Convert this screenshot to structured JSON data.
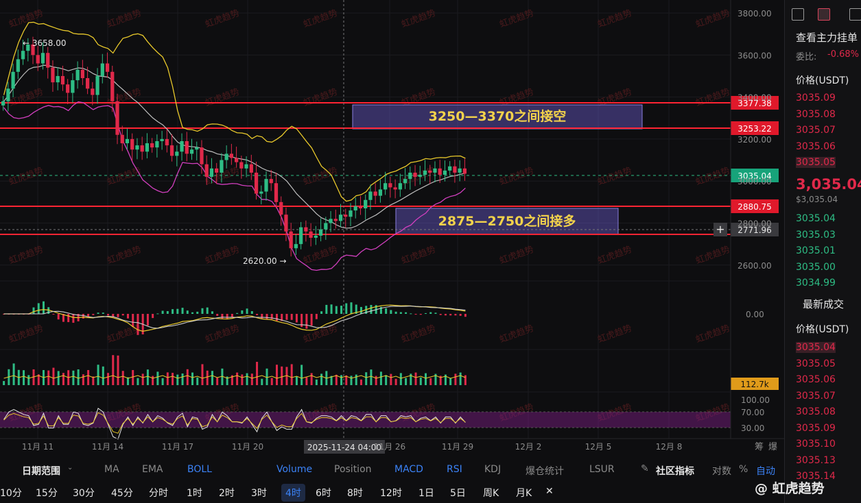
{
  "watermark": "虹虎趋势",
  "colors": {
    "up": "#2ebd85",
    "down": "#e0294a",
    "accent": "#3b82f6",
    "boll_upper": "#e9c92b",
    "boll_mid": "#bdbdbd",
    "boll_lower": "#d23fbf",
    "zone": "#6a5acd"
  },
  "price_axis": {
    "ticks": [
      "3800.00",
      "3600.00",
      "3400.00",
      "3200.00",
      "3000.00",
      "2800.00",
      "2600.00"
    ],
    "labels": {
      "line1": "3377.38",
      "line2": "3253.22",
      "current": "3035.04",
      "line3": "2880.75",
      "crosshair": "2771.96"
    }
  },
  "annotations": {
    "high": "← 3658.00",
    "low": "2620.00 →",
    "short_zone": "3250—3370之间接空",
    "long_zone": "2875—2750之间接多"
  },
  "macd_axis": "0.00",
  "volume_axis": "112.7k",
  "rsi_axis": [
    "100.00",
    "70.00",
    "30.00"
  ],
  "time_axis": [
    "11月 11",
    "11月 14",
    "11月 17",
    "11月 20",
    "11月 26",
    "11月 29",
    "12月 2",
    "12月 5",
    "12月 8"
  ],
  "crosshair_time": "2025-11-24 04:00",
  "axis_corner": [
    "筹",
    "爆"
  ],
  "chart_data": {
    "type": "candlestick",
    "title": "",
    "ylim": [
      2560,
      3820
    ],
    "x": [
      "11月 11",
      "11月 14",
      "11月 17",
      "11月 20",
      "11月 24",
      "11月 26",
      "11月 29"
    ],
    "annotated_points": {
      "high": 3658.0,
      "low": 2620.0,
      "current": 3035.04
    },
    "horizontal_lines": [
      3377.38,
      3253.22,
      2880.75
    ],
    "zones": [
      {
        "label": "3250—3370之间接空",
        "from": 3250,
        "to": 3370
      },
      {
        "label": "2875—2750之间接多",
        "from": 2750,
        "to": 2875
      }
    ],
    "close_series": [
      3380,
      3440,
      3520,
      3580,
      3620,
      3650,
      3600,
      3560,
      3610,
      3540,
      3470,
      3500,
      3460,
      3420,
      3480,
      3530,
      3490,
      3440,
      3410,
      3500,
      3560,
      3520,
      3380,
      3220,
      3180,
      3200,
      3150,
      3170,
      3140,
      3180,
      3160,
      3190,
      3200,
      3170,
      3120,
      3140,
      3190,
      3130,
      3150,
      3160,
      3080,
      3020,
      3060,
      3040,
      3100,
      3130,
      3110,
      3090,
      3060,
      3080,
      3040,
      2940,
      2950,
      3010,
      2990,
      2900,
      2840,
      2760,
      2680,
      2700,
      2780,
      2760,
      2730,
      2740,
      2770,
      2800,
      2820,
      2810,
      2840,
      2830,
      2860,
      2880,
      2870,
      2910,
      2950,
      2930,
      2960,
      2990,
      2970,
      2960,
      2990,
      3010,
      3040,
      3020,
      3030,
      3050,
      3040,
      3060,
      3030,
      3050,
      3070,
      3040,
      3060,
      3035
    ]
  },
  "right_panel": {
    "title": "查看主力挂单",
    "ratio_label": "委比:",
    "ratio_value": "-0.68%",
    "price_header": "价格(USDT)",
    "asks": [
      "3035.09",
      "3035.08",
      "3035.07",
      "3035.06",
      "3035.05"
    ],
    "last_price": "3,035.04",
    "last_price_sub": "$3,035.04",
    "bids": [
      "3035.04",
      "3035.03",
      "3035.01",
      "3035.00",
      "3034.99"
    ],
    "trades_title": "最新成交",
    "trades_header": "价格(USDT)",
    "trades": [
      "3035.04",
      "3035.05",
      "3035.06",
      "3035.07",
      "3035.08",
      "3035.09",
      "3035.10",
      "3035.13",
      "3035.14"
    ]
  },
  "toolbar": {
    "date_range": "日期范围",
    "indicators": [
      "MA",
      "EMA",
      "BOLL",
      "Volume",
      "Position",
      "MACD",
      "RSI",
      "KDJ",
      "爆仓统计",
      "LSUR"
    ],
    "community": "社区指标",
    "log": "对数",
    "percent": "%",
    "auto": "自动"
  },
  "timeframes": [
    "10分",
    "15分",
    "30分",
    "45分",
    "分时",
    "1时",
    "2时",
    "3时",
    "4时",
    "6时",
    "8时",
    "12时",
    "1日",
    "5日",
    "周K",
    "月K",
    "✕"
  ],
  "brand": "@ 虹虎趋势"
}
